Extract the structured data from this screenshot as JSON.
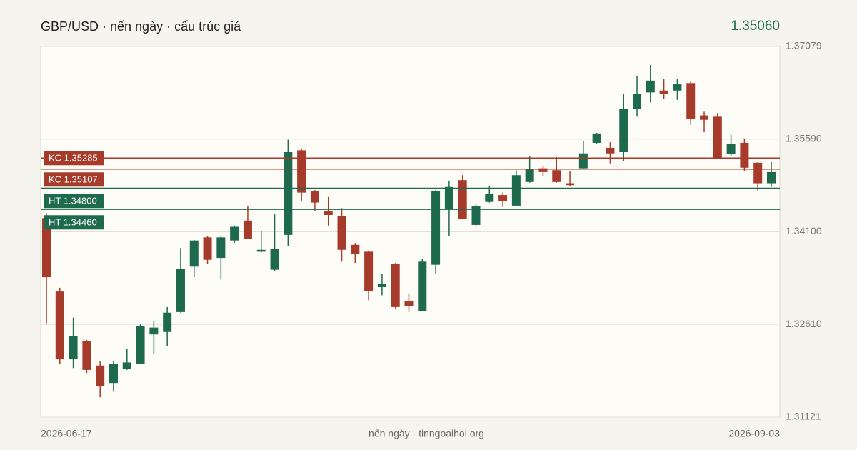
{
  "chart_data": {
    "type": "candlestick",
    "title": "GBP/USD · nến ngày · cấu trúc giá",
    "last_price": "1.35060",
    "footer": "nến ngày · tinngoaihoi.org",
    "up_color": "#1e6a4e",
    "down_color": "#a63a2b",
    "grid": true,
    "ylim": [
      1.31121,
      1.37079
    ],
    "yticks": [
      1.37079,
      1.3559,
      1.341,
      1.3261,
      1.31121
    ],
    "ytick_labels": [
      "1.37079",
      "1.35590",
      "1.34100",
      "1.32610",
      "1.31121"
    ],
    "levels": [
      {
        "name": "KC 1.35285",
        "value": 1.35285,
        "color": "#a63a2b"
      },
      {
        "name": "KC 1.35107",
        "value": 1.35107,
        "color": "#a63a2b"
      },
      {
        "name": "HT 1.34800",
        "value": 1.348,
        "color": "#1e6a4e"
      },
      {
        "name": "HT 1.34460",
        "value": 1.3446,
        "color": "#1e6a4e"
      }
    ],
    "categories": [
      "2026-06-17",
      null,
      null,
      null,
      null,
      null,
      null,
      null,
      null,
      null,
      null,
      null,
      null,
      null,
      null,
      null,
      null,
      null,
      null,
      null,
      null,
      null,
      null,
      null,
      null,
      null,
      null,
      null,
      null,
      null,
      null,
      null,
      null,
      null,
      null,
      null,
      null,
      null,
      null,
      null,
      null,
      null,
      null,
      null,
      null,
      null,
      null,
      null,
      null,
      null,
      null,
      null,
      null,
      null,
      "2026-09-03"
    ],
    "open": [
      1.3432,
      1.3314,
      1.3205,
      1.3234,
      1.3195,
      1.3167,
      1.3189,
      1.3198,
      1.3245,
      1.3249,
      1.3281,
      1.3354,
      1.3401,
      1.3368,
      1.3396,
      1.3428,
      1.3378,
      1.3349,
      1.3405,
      1.3541,
      1.3475,
      1.3443,
      1.3435,
      1.3389,
      1.3378,
      1.3321,
      1.3358,
      1.3299,
      1.3283,
      1.3357,
      1.3446,
      1.3493,
      1.3421,
      1.3458,
      1.3469,
      1.3452,
      1.349,
      1.3512,
      1.3509,
      1.3488,
      1.3512,
      1.3553,
      1.3545,
      1.3538,
      1.3608,
      1.3634,
      1.3637,
      1.3637,
      1.3649,
      1.3597,
      1.3595,
      1.3535,
      1.3553,
      1.3521,
      1.3488
    ],
    "high": [
      1.344,
      1.332,
      1.3272,
      1.3236,
      1.3202,
      1.3203,
      1.3222,
      1.3261,
      1.3266,
      1.3289,
      1.3384,
      1.3397,
      1.3403,
      1.3403,
      1.342,
      1.3451,
      1.3411,
      1.3438,
      1.3558,
      1.3544,
      1.3477,
      1.3466,
      1.3448,
      1.3392,
      1.338,
      1.3342,
      1.336,
      1.3311,
      1.3366,
      1.3477,
      1.3491,
      1.3501,
      1.3454,
      1.3483,
      1.3473,
      1.3509,
      1.3531,
      1.3515,
      1.353,
      1.3507,
      1.3556,
      1.3569,
      1.3554,
      1.3631,
      1.3661,
      1.3678,
      1.3656,
      1.3655,
      1.3652,
      1.3603,
      1.3601,
      1.3566,
      1.356,
      1.3522,
      1.3522
    ],
    "low": [
      1.3263,
      1.3197,
      1.3191,
      1.3183,
      1.3144,
      1.3153,
      1.3188,
      1.3197,
      1.3214,
      1.3226,
      1.328,
      1.3337,
      1.3358,
      1.3333,
      1.3392,
      1.3398,
      1.3377,
      1.3347,
      1.3387,
      1.346,
      1.3444,
      1.342,
      1.3362,
      1.336,
      1.33,
      1.3308,
      1.3287,
      1.3281,
      1.3282,
      1.3343,
      1.3403,
      1.343,
      1.342,
      1.3457,
      1.345,
      1.3451,
      1.3489,
      1.3499,
      1.3489,
      1.3484,
      1.351,
      1.3552,
      1.352,
      1.3524,
      1.3595,
      1.3618,
      1.3623,
      1.3622,
      1.3582,
      1.357,
      1.3527,
      1.3531,
      1.3507,
      1.3475,
      1.3482
    ],
    "close": [
      1.3337,
      1.3205,
      1.3242,
      1.3188,
      1.3162,
      1.3198,
      1.32,
      1.3258,
      1.3256,
      1.328,
      1.335,
      1.3396,
      1.3365,
      1.3401,
      1.3418,
      1.3399,
      1.3381,
      1.3383,
      1.3538,
      1.3473,
      1.3457,
      1.3437,
      1.3381,
      1.3375,
      1.3315,
      1.3326,
      1.3289,
      1.329,
      1.3362,
      1.3475,
      1.3482,
      1.3431,
      1.3451,
      1.3471,
      1.3459,
      1.3501,
      1.351,
      1.3506,
      1.349,
      1.3485,
      1.3536,
      1.3568,
      1.3536,
      1.3608,
      1.3631,
      1.3653,
      1.3632,
      1.3647,
      1.3592,
      1.359,
      1.3529,
      1.3551,
      1.3513,
      1.3488,
      1.3506
    ]
  }
}
